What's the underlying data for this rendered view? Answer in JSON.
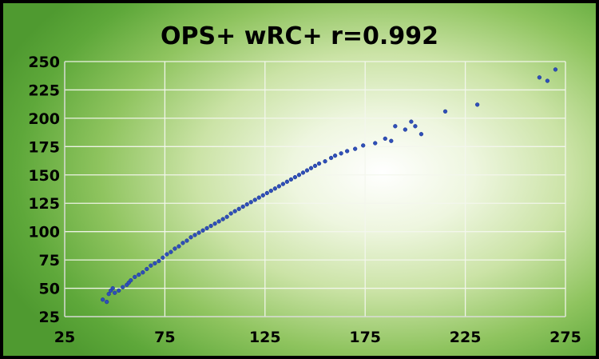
{
  "chart_data": {
    "type": "scatter",
    "title": "OPS+ wRC+ r=0.992",
    "xlabel": "",
    "ylabel": "",
    "xlim": [
      25,
      275
    ],
    "ylim": [
      25,
      250
    ],
    "x_ticks": [
      25,
      75,
      125,
      175,
      225,
      275
    ],
    "y_ticks": [
      25,
      50,
      75,
      100,
      125,
      150,
      175,
      200,
      225,
      250
    ],
    "grid": true,
    "marker_color": "#2f4fb8",
    "background_colors": [
      "#ffffff",
      "#cbe3a6",
      "#5ea83a"
    ],
    "series": [
      {
        "points": [
          [
            44,
            40
          ],
          [
            46,
            38
          ],
          [
            47,
            45
          ],
          [
            48,
            48
          ],
          [
            49,
            50
          ],
          [
            50,
            46
          ],
          [
            52,
            48
          ],
          [
            54,
            51
          ],
          [
            56,
            53
          ],
          [
            57,
            55
          ],
          [
            58,
            57
          ],
          [
            60,
            60
          ],
          [
            62,
            62
          ],
          [
            64,
            64
          ],
          [
            66,
            67
          ],
          [
            68,
            70
          ],
          [
            70,
            72
          ],
          [
            72,
            74
          ],
          [
            74,
            77
          ],
          [
            76,
            80
          ],
          [
            78,
            82
          ],
          [
            80,
            85
          ],
          [
            82,
            87
          ],
          [
            84,
            90
          ],
          [
            86,
            92
          ],
          [
            88,
            95
          ],
          [
            90,
            97
          ],
          [
            92,
            99
          ],
          [
            94,
            101
          ],
          [
            96,
            103
          ],
          [
            98,
            105
          ],
          [
            100,
            107
          ],
          [
            102,
            109
          ],
          [
            104,
            111
          ],
          [
            106,
            113
          ],
          [
            108,
            116
          ],
          [
            110,
            118
          ],
          [
            112,
            120
          ],
          [
            114,
            122
          ],
          [
            116,
            124
          ],
          [
            118,
            126
          ],
          [
            120,
            128
          ],
          [
            122,
            130
          ],
          [
            124,
            132
          ],
          [
            126,
            134
          ],
          [
            128,
            136
          ],
          [
            130,
            138
          ],
          [
            132,
            140
          ],
          [
            134,
            142
          ],
          [
            136,
            144
          ],
          [
            138,
            146
          ],
          [
            140,
            148
          ],
          [
            142,
            150
          ],
          [
            144,
            152
          ],
          [
            146,
            154
          ],
          [
            148,
            156
          ],
          [
            150,
            158
          ],
          [
            152,
            160
          ],
          [
            155,
            162
          ],
          [
            158,
            165
          ],
          [
            160,
            167
          ],
          [
            163,
            169
          ],
          [
            166,
            171
          ],
          [
            170,
            173
          ],
          [
            174,
            176
          ],
          [
            180,
            178
          ],
          [
            185,
            182
          ],
          [
            188,
            180
          ],
          [
            190,
            193
          ],
          [
            195,
            190
          ],
          [
            198,
            197
          ],
          [
            200,
            193
          ],
          [
            203,
            186
          ],
          [
            215,
            206
          ],
          [
            231,
            212
          ],
          [
            262,
            236
          ],
          [
            266,
            233
          ],
          [
            270,
            243
          ]
        ]
      }
    ]
  }
}
